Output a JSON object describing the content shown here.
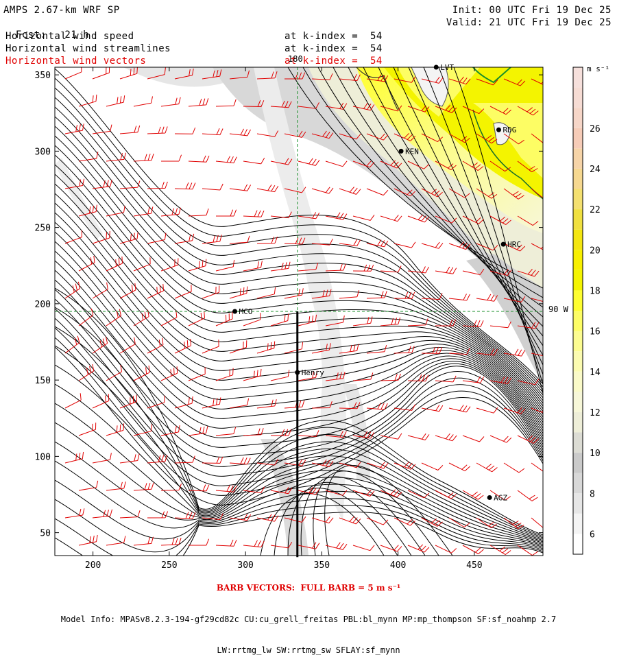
{
  "header": {
    "title": "AMPS 2.67-km WRF SP",
    "fcst_label": "Fcst:",
    "fcst_value": "21 h",
    "init": "Init: 00 UTC Fri 19 Dec 25",
    "valid": "Valid: 21 UTC Fri 19 Dec 25",
    "fields": [
      {
        "name": "Horizontal wind speed",
        "level": "at k-index =  54",
        "color": "#000000"
      },
      {
        "name": "Horizontal wind streamlines",
        "level": "at k-index =  54",
        "color": "#000000"
      },
      {
        "name": "Horizontal wind vectors",
        "level": "at k-index =  54",
        "color": "#e00000"
      }
    ]
  },
  "map": {
    "x_ticks": [
      "200",
      "250",
      "300",
      "350",
      "400",
      "450"
    ],
    "y_ticks": [
      "50",
      "100",
      "150",
      "200",
      "250",
      "300",
      "350"
    ],
    "meridian_label": "180",
    "parallel_label": "90 W",
    "stations": [
      {
        "id": "MCO",
        "x": 293,
        "y": 195
      },
      {
        "id": "Henry",
        "x": 334,
        "y": 155
      },
      {
        "id": "KEN",
        "x": 402,
        "y": 300
      },
      {
        "id": "RDG",
        "x": 466,
        "y": 314
      },
      {
        "id": "HRC",
        "x": 469,
        "y": 239
      },
      {
        "id": "AGZ",
        "x": 460,
        "y": 73
      },
      {
        "id": "LVT",
        "x": 425,
        "y": 355
      }
    ],
    "meridian_x": 334,
    "parallel_y": 195,
    "section_line": {
      "x": 334,
      "y_from": 195,
      "y_to": 34
    }
  },
  "colorbar": {
    "unit": "m s⁻¹",
    "levels": [
      {
        "value": 5,
        "label": "",
        "color": "#ffffff"
      },
      {
        "value": 6,
        "label": "6",
        "color": "#f4f4f4"
      },
      {
        "value": 7,
        "label": "",
        "color": "#e6e6e6"
      },
      {
        "value": 8,
        "label": "8",
        "color": "#d8d8d8"
      },
      {
        "value": 9,
        "label": "",
        "color": "#cacaca"
      },
      {
        "value": 10,
        "label": "10",
        "color": "#dcdcd4"
      },
      {
        "value": 11,
        "label": "",
        "color": "#eeeed8"
      },
      {
        "value": 12,
        "label": "12",
        "color": "#f7f7d8"
      },
      {
        "value": 13,
        "label": "",
        "color": "#fafac8"
      },
      {
        "value": 14,
        "label": "14",
        "color": "#fbfbb0"
      },
      {
        "value": 15,
        "label": "",
        "color": "#fcfc90"
      },
      {
        "value": 16,
        "label": "16",
        "color": "#fdfd64"
      },
      {
        "value": 17,
        "label": "",
        "color": "#fefe30"
      },
      {
        "value": 18,
        "label": "18",
        "color": "#f4f400"
      },
      {
        "value": 19,
        "label": "",
        "color": "#f8f000"
      },
      {
        "value": 20,
        "label": "20",
        "color": "#f4e610"
      },
      {
        "value": 21,
        "label": "",
        "color": "#f0e040"
      },
      {
        "value": 22,
        "label": "22",
        "color": "#f4e070"
      },
      {
        "value": 23,
        "label": "",
        "color": "#f6d890"
      },
      {
        "value": 24,
        "label": "24",
        "color": "#f6d4a8"
      },
      {
        "value": 25,
        "label": "",
        "color": "#f6ccb8"
      },
      {
        "value": 26,
        "label": "26",
        "color": "#f6d6c8"
      },
      {
        "value": 27,
        "label": "",
        "color": "#f6dcd4"
      },
      {
        "value": 28,
        "label": "",
        "color": "#f6e0dc"
      }
    ]
  },
  "footer": {
    "barb_title": "BARB VECTORS:  FULL BARB = 5 m s⁻¹",
    "model_info_1": "Model Info: MPASv8.2.3-194-gf29cd82c CU:cu_grell_freitas PBL:bl_mynn MP:mp_thompson SF:sf_noahmp 2.7",
    "model_info_2": "LW:rrtmg_lw SW:rrtmg_sw SFLAY:sf_mynn"
  }
}
